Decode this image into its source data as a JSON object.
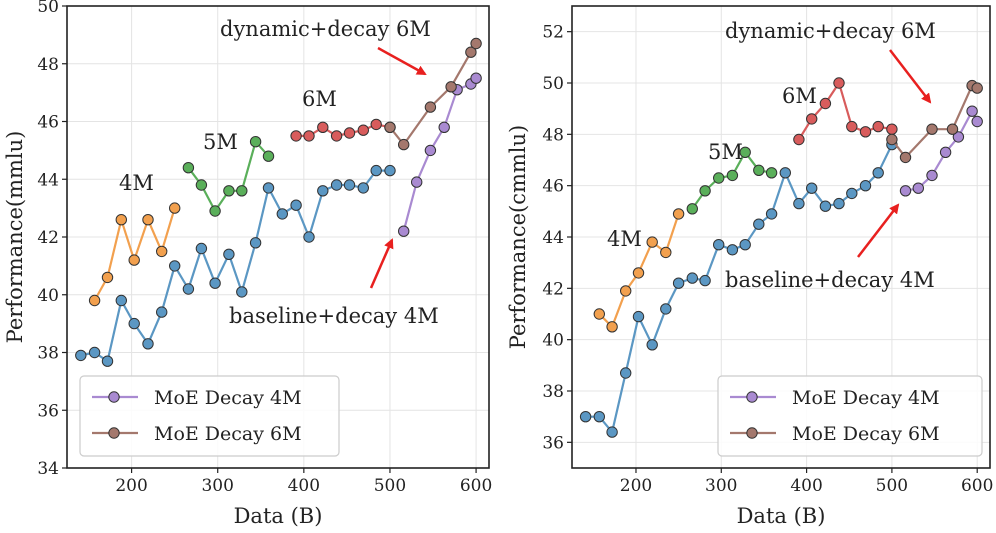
{
  "chart_data": [
    {
      "type": "line",
      "xlabel": "Data (B)",
      "ylabel": "Performance(mmlu)",
      "xlim": [
        125,
        615
      ],
      "ylim": [
        34,
        50
      ],
      "xticks": [
        "200",
        "300",
        "400",
        "500",
        "600"
      ],
      "yticks": [
        "34",
        "36",
        "38",
        "40",
        "42",
        "44",
        "46",
        "48",
        "50"
      ],
      "grid": true,
      "legend_position": "lower-left",
      "series": [
        {
          "name": "",
          "color": "#5b97c3",
          "x": [
            141,
            157,
            172,
            188,
            203,
            219,
            235,
            250,
            266,
            281,
            297,
            313,
            328,
            344,
            359,
            375,
            391,
            406,
            422,
            438,
            453,
            469,
            484,
            500
          ],
          "y": [
            37.9,
            38.0,
            37.7,
            39.8,
            39.0,
            38.3,
            39.4,
            41.0,
            40.2,
            41.6,
            40.4,
            41.4,
            40.1,
            41.8,
            43.7,
            42.8,
            43.1,
            42.0,
            43.6,
            43.8,
            43.8,
            43.7,
            44.3,
            44.3
          ]
        },
        {
          "name": "",
          "color": "#f2a04e",
          "x": [
            157,
            172,
            188,
            203,
            219,
            235,
            250
          ],
          "y": [
            39.8,
            40.6,
            42.6,
            41.2,
            42.6,
            41.5,
            43.0
          ]
        },
        {
          "name": "",
          "color": "#5aaf5a",
          "x": [
            266,
            281,
            297,
            313,
            328,
            344,
            359
          ],
          "y": [
            44.4,
            43.8,
            42.9,
            43.6,
            43.6,
            45.3,
            44.8
          ]
        },
        {
          "name": "",
          "color": "#d85c5c",
          "x": [
            391,
            406,
            422,
            438,
            453,
            469,
            484,
            500
          ],
          "y": [
            45.5,
            45.5,
            45.8,
            45.5,
            45.6,
            45.7,
            45.9,
            45.8
          ]
        },
        {
          "name": "MoE Decay 4M",
          "color": "#a98ad1",
          "x": [
            516,
            531,
            547,
            563,
            578,
            594,
            600
          ],
          "y": [
            42.2,
            43.9,
            45.0,
            45.8,
            47.1,
            47.3,
            47.5
          ]
        },
        {
          "name": "MoE Decay 6M",
          "color": "#a4786d",
          "x": [
            500,
            516,
            547,
            571,
            594,
            600
          ],
          "y": [
            45.8,
            45.2,
            46.5,
            47.2,
            48.4,
            48.7
          ]
        }
      ],
      "annotations": [
        {
          "text": "4M"
        },
        {
          "text": "5M"
        },
        {
          "text": "6M"
        },
        {
          "text": "dynamic+decay 6M"
        },
        {
          "text": "baseline+decay 4M"
        }
      ]
    },
    {
      "type": "line",
      "xlabel": "Data (B)",
      "ylabel": "Performance(cmmlu)",
      "xlim": [
        125,
        615
      ],
      "ylim": [
        35,
        53
      ],
      "xticks": [
        "200",
        "300",
        "400",
        "500",
        "600"
      ],
      "yticks": [
        "36",
        "38",
        "40",
        "42",
        "44",
        "46",
        "48",
        "50",
        "52"
      ],
      "grid": true,
      "legend_position": "lower-right",
      "series": [
        {
          "name": "",
          "color": "#5b97c3",
          "x": [
            141,
            157,
            172,
            188,
            203,
            219,
            235,
            250,
            266,
            281,
            297,
            313,
            328,
            344,
            359,
            375,
            391,
            406,
            422,
            438,
            453,
            469,
            484,
            500
          ],
          "y": [
            37.0,
            37.0,
            36.4,
            38.7,
            40.9,
            39.8,
            41.2,
            42.2,
            42.4,
            42.3,
            43.7,
            43.5,
            43.7,
            44.5,
            44.9,
            46.5,
            45.3,
            45.9,
            45.2,
            45.3,
            45.7,
            46.0,
            46.5,
            47.6
          ]
        },
        {
          "name": "",
          "color": "#f2a04e",
          "x": [
            157,
            172,
            188,
            203,
            219,
            235,
            250
          ],
          "y": [
            41.0,
            40.5,
            41.9,
            42.6,
            43.8,
            43.4,
            44.9
          ]
        },
        {
          "name": "",
          "color": "#5aaf5a",
          "x": [
            266,
            281,
            297,
            313,
            328,
            344,
            359
          ],
          "y": [
            45.1,
            45.8,
            46.3,
            46.4,
            47.3,
            46.6,
            46.5
          ]
        },
        {
          "name": "",
          "color": "#d85c5c",
          "x": [
            391,
            406,
            422,
            438,
            453,
            469,
            484,
            500
          ],
          "y": [
            47.8,
            48.6,
            49.2,
            50.0,
            48.3,
            48.1,
            48.3,
            48.2
          ]
        },
        {
          "name": "MoE Decay 4M",
          "color": "#a98ad1",
          "x": [
            516,
            531,
            547,
            563,
            578,
            594,
            600
          ],
          "y": [
            45.8,
            45.9,
            46.4,
            47.3,
            47.9,
            48.9,
            48.5
          ]
        },
        {
          "name": "MoE Decay 6M",
          "color": "#a4786d",
          "x": [
            500,
            516,
            547,
            571,
            594,
            600
          ],
          "y": [
            47.8,
            47.1,
            48.2,
            48.2,
            49.9,
            49.8
          ]
        }
      ],
      "annotations": [
        {
          "text": "4M"
        },
        {
          "text": "5M"
        },
        {
          "text": "6M"
        },
        {
          "text": "dynamic+decay 6M"
        },
        {
          "text": "baseline+decay 4M"
        }
      ]
    }
  ]
}
